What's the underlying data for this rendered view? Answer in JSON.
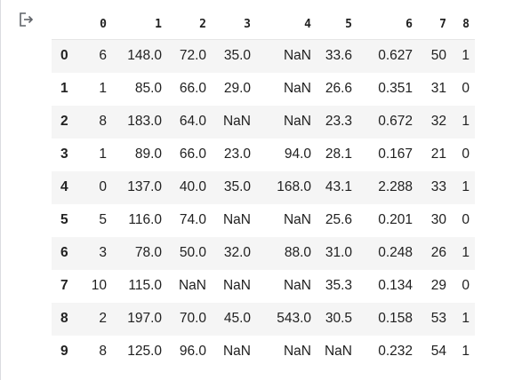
{
  "output": {
    "icon": "output-redirect-icon"
  },
  "table": {
    "index_header": "",
    "columns": [
      "0",
      "1",
      "2",
      "3",
      "4",
      "5",
      "6",
      "7",
      "8"
    ],
    "index": [
      "0",
      "1",
      "2",
      "3",
      "4",
      "5",
      "6",
      "7",
      "8",
      "9"
    ],
    "rows": [
      [
        "6",
        "148.0",
        "72.0",
        "35.0",
        "NaN",
        "33.6",
        "0.627",
        "50",
        "1"
      ],
      [
        "1",
        "85.0",
        "66.0",
        "29.0",
        "NaN",
        "26.6",
        "0.351",
        "31",
        "0"
      ],
      [
        "8",
        "183.0",
        "64.0",
        "NaN",
        "NaN",
        "23.3",
        "0.672",
        "32",
        "1"
      ],
      [
        "1",
        "89.0",
        "66.0",
        "23.0",
        "94.0",
        "28.1",
        "0.167",
        "21",
        "0"
      ],
      [
        "0",
        "137.0",
        "40.0",
        "35.0",
        "168.0",
        "43.1",
        "2.288",
        "33",
        "1"
      ],
      [
        "5",
        "116.0",
        "74.0",
        "NaN",
        "NaN",
        "25.6",
        "0.201",
        "30",
        "0"
      ],
      [
        "3",
        "78.0",
        "50.0",
        "32.0",
        "88.0",
        "31.0",
        "0.248",
        "26",
        "1"
      ],
      [
        "10",
        "115.0",
        "NaN",
        "NaN",
        "NaN",
        "35.3",
        "0.134",
        "29",
        "0"
      ],
      [
        "2",
        "197.0",
        "70.0",
        "45.0",
        "543.0",
        "30.5",
        "0.158",
        "53",
        "1"
      ],
      [
        "8",
        "125.0",
        "96.0",
        "NaN",
        "NaN",
        "NaN",
        "0.232",
        "54",
        "1"
      ]
    ]
  }
}
